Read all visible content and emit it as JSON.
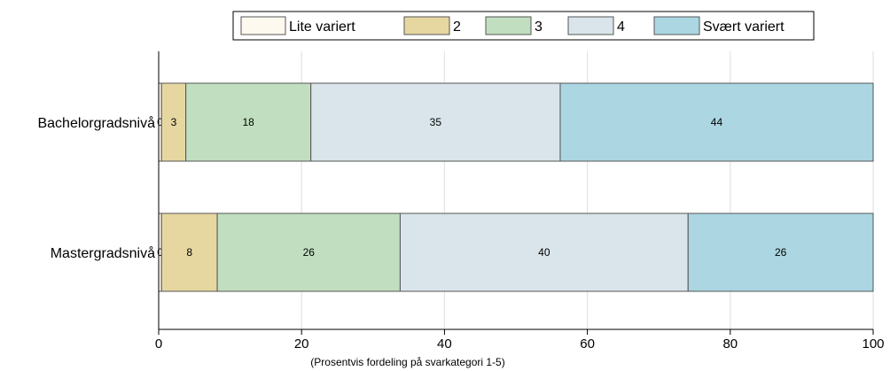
{
  "chart_data": {
    "type": "bar",
    "orientation": "horizontal",
    "stacked": true,
    "title": "",
    "xlabel": "(Prosentvis fordeling på svarkategori 1-5)",
    "ylabel": "",
    "xlim": [
      0,
      100
    ],
    "x_ticks": [
      0,
      20,
      40,
      60,
      80,
      100
    ],
    "grid": true,
    "legend_position": "top",
    "categories": [
      "Bachelorgradsnivå",
      "Mastergradsnivå"
    ],
    "series": [
      {
        "name": "Lite variert",
        "color": "#fef9ee",
        "values": [
          0.4,
          0.4
        ],
        "labels": [
          "0",
          "0"
        ]
      },
      {
        "name": "2",
        "color": "#e6d7a1",
        "values": [
          3.4,
          7.8
        ],
        "labels": [
          "3",
          "8"
        ]
      },
      {
        "name": "3",
        "color": "#c1dfc0",
        "values": [
          17.5,
          25.6
        ],
        "labels": [
          "18",
          "26"
        ]
      },
      {
        "name": "4",
        "color": "#d9e5eb",
        "values": [
          34.9,
          40.3
        ],
        "labels": [
          "35",
          "40"
        ]
      },
      {
        "name": "Svært variert",
        "color": "#abd6e2",
        "values": [
          43.8,
          25.9
        ],
        "labels": [
          "44",
          "26"
        ]
      }
    ]
  }
}
